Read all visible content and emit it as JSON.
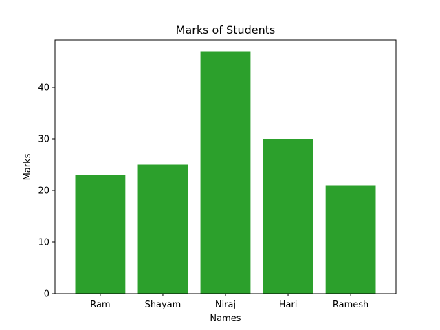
{
  "chart_data": {
    "type": "bar",
    "title": "Marks of Students",
    "xlabel": "Names",
    "ylabel": "Marks",
    "categories": [
      "Ram",
      "Shayam",
      "Niraj",
      "Hari",
      "Ramesh"
    ],
    "values": [
      23,
      25,
      47,
      30,
      21
    ],
    "ylim": [
      0,
      49.2
    ],
    "yticks": [
      0,
      10,
      20,
      30,
      40
    ],
    "grid": false,
    "colors": {
      "bar": "#2ca02c",
      "axes": "#000000",
      "background": "#ffffff"
    }
  }
}
